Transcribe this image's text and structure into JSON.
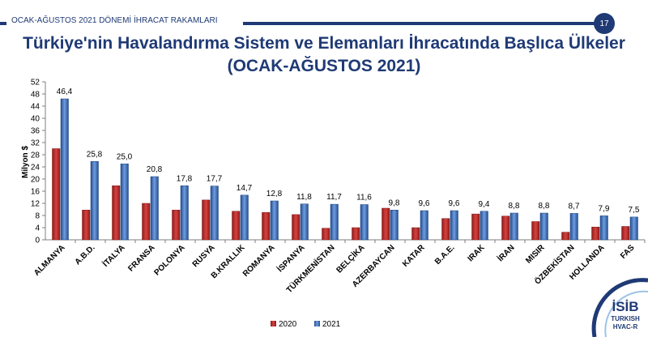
{
  "header": {
    "label": "OCAK-AĞUSTOS 2021 DÖNEMİ İHRACAT RAKAMLARI",
    "page_number": "17",
    "accent_color": "#1f3a75"
  },
  "title_line1": "Türkiye'nin Havalandırma Sistem ve Elemanları İhracatında Başlıca Ülkeler",
  "title_line2": "(OCAK-AĞUSTOS 2021)",
  "logo": {
    "name": "İSİB",
    "line1": "TURKISH",
    "line2": "HVAC-R"
  },
  "chart_data": {
    "type": "bar",
    "title": "",
    "xlabel": "",
    "ylabel": "Milyon $",
    "ylim": [
      0,
      52
    ],
    "yticks": [
      0,
      4,
      8,
      12,
      16,
      20,
      24,
      28,
      32,
      36,
      40,
      44,
      48,
      52
    ],
    "grid": false,
    "legend_position": "bottom",
    "categories": [
      "ALMANYA",
      "A.B.D.",
      "İTALYA",
      "FRANSA",
      "POLONYA",
      "RUSYA",
      "B.KRALLIK",
      "ROMANYA",
      "İSPANYA",
      "TÜRKMENİSTAN",
      "BELÇİKA",
      "AZERBAYCAN",
      "KATAR",
      "B.A.E.",
      "IRAK",
      "İRAN",
      "MISIR",
      "ÖZBEKİSTAN",
      "HOLLANDA",
      "FAS"
    ],
    "series": [
      {
        "name": "2020",
        "color": "#c0312f",
        "values": [
          30.0,
          9.8,
          17.8,
          12.0,
          9.8,
          13.1,
          9.4,
          9.0,
          8.3,
          3.8,
          4.0,
          10.4,
          4.0,
          7.0,
          8.5,
          7.8,
          6.0,
          2.5,
          4.2,
          4.4
        ]
      },
      {
        "name": "2021",
        "color": "#3f74c4",
        "values": [
          46.4,
          25.8,
          25.0,
          20.8,
          17.8,
          17.7,
          14.7,
          12.8,
          11.8,
          11.7,
          11.6,
          9.8,
          9.6,
          9.6,
          9.4,
          8.8,
          8.8,
          8.7,
          7.9,
          7.5
        ],
        "labels": [
          "46,4",
          "25,8",
          "25,0",
          "20,8",
          "17,8",
          "17,7",
          "14,7",
          "12,8",
          "11,8",
          "11,7",
          "11,6",
          "9,8",
          "9,6",
          "9,6",
          "9,4",
          "8,8",
          "8,8",
          "8,7",
          "7,9",
          "7,5"
        ]
      }
    ]
  }
}
